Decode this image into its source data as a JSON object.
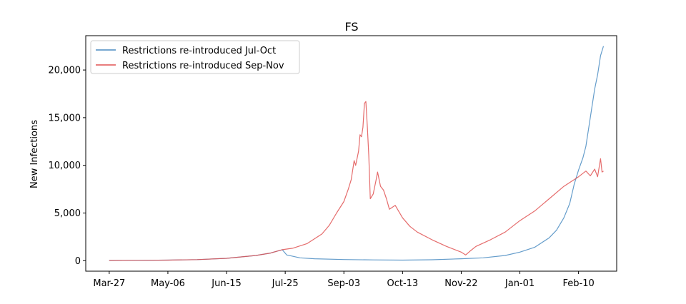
{
  "chart_data": {
    "type": "line",
    "title": "FS",
    "xlabel": "",
    "ylabel": "New Infections",
    "x_tick_labels": [
      "Mar-27",
      "May-06",
      "Jun-15",
      "Jul-25",
      "Sep-03",
      "Oct-13",
      "Nov-22",
      "Jan-01",
      "Feb-10"
    ],
    "x_ticks_day": [
      0,
      40,
      80,
      120,
      160,
      200,
      240,
      280,
      320
    ],
    "y_ticks": [
      0,
      5000,
      10000,
      15000,
      20000
    ],
    "y_tick_labels": [
      "0",
      "5,000",
      "10,000",
      "15,000",
      "20,000"
    ],
    "xlim": [
      -16,
      346
    ],
    "ylim": [
      -1100,
      23600
    ],
    "grid": false,
    "legend_position": "top-left",
    "series": [
      {
        "name": "Restrictions re-introduced Jul-Oct",
        "color": "#4a8cc2",
        "points": [
          [
            0,
            20
          ],
          [
            20,
            35
          ],
          [
            40,
            60
          ],
          [
            60,
            110
          ],
          [
            80,
            250
          ],
          [
            100,
            550
          ],
          [
            110,
            800
          ],
          [
            118,
            1150
          ],
          [
            121,
            600
          ],
          [
            124,
            500
          ],
          [
            130,
            300
          ],
          [
            140,
            200
          ],
          [
            160,
            120
          ],
          [
            180,
            80
          ],
          [
            200,
            60
          ],
          [
            220,
            100
          ],
          [
            240,
            200
          ],
          [
            255,
            300
          ],
          [
            270,
            550
          ],
          [
            280,
            900
          ],
          [
            290,
            1400
          ],
          [
            300,
            2400
          ],
          [
            305,
            3200
          ],
          [
            310,
            4500
          ],
          [
            314,
            6000
          ],
          [
            317,
            8000
          ],
          [
            320,
            9500
          ],
          [
            323,
            10800
          ],
          [
            325,
            12000
          ],
          [
            327,
            14000
          ],
          [
            329,
            16000
          ],
          [
            331,
            18000
          ],
          [
            333,
            19500
          ],
          [
            335,
            21500
          ],
          [
            337,
            22500
          ]
        ]
      },
      {
        "name": "Restrictions re-introduced Sep-Nov",
        "color": "#e05252",
        "points": [
          [
            0,
            20
          ],
          [
            20,
            35
          ],
          [
            40,
            60
          ],
          [
            60,
            110
          ],
          [
            80,
            250
          ],
          [
            100,
            550
          ],
          [
            110,
            800
          ],
          [
            118,
            1150
          ],
          [
            125,
            1300
          ],
          [
            135,
            1800
          ],
          [
            145,
            2800
          ],
          [
            150,
            3700
          ],
          [
            155,
            5000
          ],
          [
            160,
            6200
          ],
          [
            163,
            7500
          ],
          [
            165,
            8500
          ],
          [
            167,
            10500
          ],
          [
            168,
            10000
          ],
          [
            170,
            11500
          ],
          [
            171,
            13200
          ],
          [
            172,
            13000
          ],
          [
            173,
            14000
          ],
          [
            174,
            16500
          ],
          [
            175,
            16700
          ],
          [
            176,
            14000
          ],
          [
            177,
            11000
          ],
          [
            178,
            6500
          ],
          [
            180,
            7000
          ],
          [
            182,
            8500
          ],
          [
            183,
            9300
          ],
          [
            185,
            7800
          ],
          [
            187,
            7400
          ],
          [
            189,
            6500
          ],
          [
            191,
            5400
          ],
          [
            195,
            5800
          ],
          [
            200,
            4500
          ],
          [
            205,
            3600
          ],
          [
            210,
            3000
          ],
          [
            220,
            2200
          ],
          [
            230,
            1500
          ],
          [
            240,
            900
          ],
          [
            243,
            600
          ],
          [
            246,
            1000
          ],
          [
            250,
            1500
          ],
          [
            260,
            2200
          ],
          [
            270,
            3000
          ],
          [
            280,
            4200
          ],
          [
            290,
            5200
          ],
          [
            300,
            6500
          ],
          [
            310,
            7800
          ],
          [
            320,
            8800
          ],
          [
            325,
            9400
          ],
          [
            328,
            8900
          ],
          [
            331,
            9600
          ],
          [
            333,
            8800
          ],
          [
            335,
            10700
          ],
          [
            336,
            9300
          ],
          [
            337,
            9400
          ]
        ]
      }
    ]
  }
}
